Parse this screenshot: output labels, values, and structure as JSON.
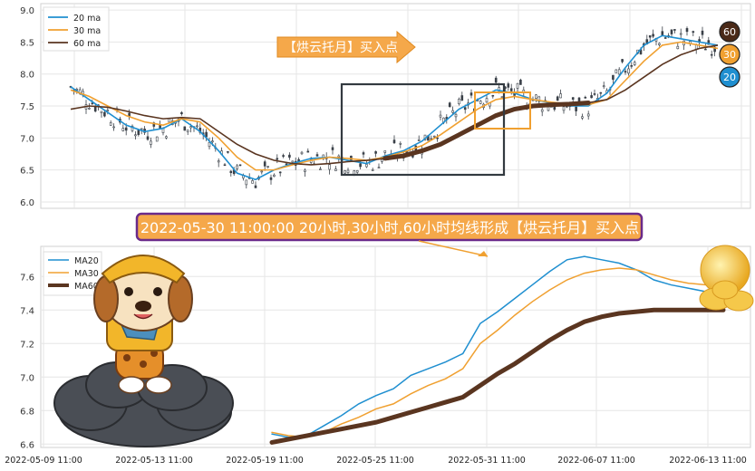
{
  "chart_data": [
    {
      "type": "line",
      "title": "",
      "ylim": [
        5.9,
        9.1
      ],
      "yticks": [
        "6.0",
        "6.5",
        "7.0",
        "7.5",
        "8.0",
        "8.5",
        "9.0"
      ],
      "grid": true,
      "legend_placement": "top-left",
      "series": [
        {
          "name": "20 ma",
          "color": "#1f8fd0",
          "values": [
            7.8,
            7.6,
            7.4,
            7.2,
            7.1,
            7.15,
            7.3,
            7.1,
            6.8,
            6.45,
            6.35,
            6.5,
            6.6,
            6.68,
            6.7,
            6.65,
            6.6,
            6.72,
            6.8,
            6.95,
            7.2,
            7.45,
            7.6,
            7.75,
            7.7,
            7.6,
            7.55,
            7.5,
            7.5,
            7.7,
            8.1,
            8.45,
            8.6,
            8.55,
            8.5,
            8.45
          ]
        },
        {
          "name": "30 ma",
          "color": "#f0a030",
          "values": [
            7.75,
            7.65,
            7.5,
            7.35,
            7.25,
            7.2,
            7.3,
            7.25,
            7.0,
            6.7,
            6.5,
            6.5,
            6.58,
            6.65,
            6.7,
            6.68,
            6.65,
            6.7,
            6.78,
            6.88,
            7.05,
            7.25,
            7.45,
            7.6,
            7.65,
            7.6,
            7.56,
            7.53,
            7.52,
            7.6,
            7.9,
            8.2,
            8.45,
            8.5,
            8.45,
            8.4
          ]
        },
        {
          "name": "60 ma",
          "color": "#5a3520",
          "values": [
            7.45,
            7.5,
            7.48,
            7.42,
            7.35,
            7.3,
            7.32,
            7.3,
            7.1,
            6.9,
            6.75,
            6.65,
            6.6,
            6.58,
            6.6,
            6.63,
            6.65,
            6.68,
            6.72,
            6.8,
            6.9,
            7.05,
            7.2,
            7.35,
            7.45,
            7.5,
            7.52,
            7.53,
            7.55,
            7.6,
            7.75,
            7.95,
            8.15,
            8.3,
            8.4,
            8.45
          ]
        }
      ],
      "badges": [
        {
          "label": "60",
          "color": "#4a2a18"
        },
        {
          "label": "30",
          "color": "#f0a030"
        },
        {
          "label": "20",
          "color": "#1f8fd0"
        }
      ],
      "annotation": "【烘云托月】买入点"
    },
    {
      "type": "line",
      "title": "2022-05-30 11:00:00 20小时,30小时,60小时均线形成【烘云托月】买入点",
      "xlabel": "",
      "ylabel": "",
      "x": [
        "2022-05-19 11:00",
        "2022-05-20 11:00",
        "2022-05-21 11:00",
        "2022-05-22 11:00",
        "2022-05-23 11:00",
        "2022-05-24 11:00",
        "2022-05-25 11:00",
        "2022-05-26 11:00",
        "2022-05-27 11:00",
        "2022-05-28 11:00",
        "2022-05-29 11:00",
        "2022-05-30 11:00",
        "2022-05-31 11:00",
        "2022-06-01 11:00",
        "2022-06-02 11:00",
        "2022-06-03 11:00",
        "2022-06-04 11:00",
        "2022-06-05 11:00",
        "2022-06-06 11:00",
        "2022-06-07 11:00",
        "2022-06-08 11:00",
        "2022-06-09 11:00",
        "2022-06-10 11:00",
        "2022-06-11 11:00",
        "2022-06-12 11:00",
        "2022-06-13 11:00",
        "2022-06-14 11:00"
      ],
      "xticks": [
        "2022-05-09 11:00",
        "2022-05-13 11:00",
        "2022-05-19 11:00",
        "2022-05-25 11:00",
        "2022-05-31 11:00",
        "2022-06-07 11:00",
        "2022-06-13 11:00"
      ],
      "ylim": [
        6.58,
        7.78
      ],
      "yticks": [
        "6.6",
        "6.8",
        "7.0",
        "7.2",
        "7.4",
        "7.6"
      ],
      "grid": true,
      "legend_placement": "top-left",
      "series": [
        {
          "name": "MA20",
          "color": "#1f8fd0",
          "values": [
            6.66,
            6.64,
            6.65,
            6.71,
            6.77,
            6.84,
            6.89,
            6.93,
            7.01,
            7.05,
            7.09,
            7.14,
            7.32,
            7.39,
            7.47,
            7.55,
            7.63,
            7.7,
            7.72,
            7.7,
            7.68,
            7.64,
            7.58,
            7.55,
            7.53,
            7.51,
            7.5
          ]
        },
        {
          "name": "MA30",
          "color": "#f0a030",
          "values": [
            6.67,
            6.65,
            6.64,
            6.67,
            6.72,
            6.76,
            6.81,
            6.84,
            6.9,
            6.95,
            6.99,
            7.05,
            7.2,
            7.28,
            7.37,
            7.45,
            7.52,
            7.58,
            7.62,
            7.64,
            7.65,
            7.64,
            7.61,
            7.58,
            7.56,
            7.55,
            7.54
          ]
        },
        {
          "name": "MA60",
          "color": "#5a3520",
          "values": [
            6.61,
            6.63,
            6.65,
            6.67,
            6.69,
            6.71,
            6.73,
            6.76,
            6.79,
            6.82,
            6.85,
            6.88,
            6.95,
            7.02,
            7.08,
            7.15,
            7.22,
            7.28,
            7.33,
            7.36,
            7.38,
            7.39,
            7.4,
            7.4,
            7.4,
            7.4,
            7.4
          ]
        }
      ]
    }
  ]
}
